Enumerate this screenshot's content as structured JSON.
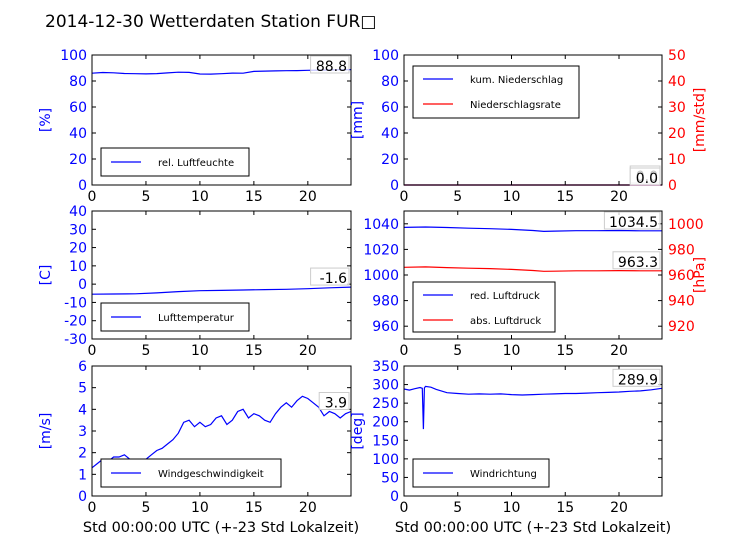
{
  "figure": {
    "title": "2014-12-30 Wetterdaten Station FUR□",
    "xlabel": "Std 00:00:00 UTC (+-23 Std Lokalzeit)"
  },
  "colors": {
    "blue": "#0000ff",
    "red": "#ff0000",
    "black": "#000000"
  },
  "chart_data": [
    {
      "type": "line",
      "ylabel": "[%]",
      "ylim": [
        0,
        100
      ],
      "yticks": [
        0,
        20,
        40,
        60,
        80,
        100
      ],
      "xlim": [
        0,
        24
      ],
      "xticks": [
        0,
        5,
        10,
        15,
        20
      ],
      "last_value_label": "88.8",
      "series": [
        {
          "name": "rel. Luftfeuchte",
          "color": "#0000ff",
          "x": [
            0,
            1,
            2,
            3,
            4,
            5,
            6,
            7,
            8,
            9,
            10,
            11,
            12,
            13,
            14,
            15,
            16,
            17,
            18,
            19,
            20,
            21,
            22,
            23,
            24
          ],
          "y": [
            86,
            86.5,
            86.3,
            85.8,
            85.6,
            85.5,
            85.7,
            86.2,
            86.8,
            86.6,
            85.4,
            85.3,
            85.6,
            86.1,
            86,
            87.4,
            87.6,
            87.8,
            87.9,
            88,
            88.2,
            88.4,
            88.5,
            88.7,
            88.8
          ]
        }
      ]
    },
    {
      "type": "line",
      "ylabel": "[mm]",
      "ylabel2": "[mm/std]",
      "ylim": [
        0,
        100
      ],
      "yticks": [
        0,
        20,
        40,
        60,
        80,
        100
      ],
      "ylim2": [
        0,
        50
      ],
      "yticks2": [
        0,
        10,
        20,
        30,
        40,
        50
      ],
      "xlim": [
        0,
        24
      ],
      "xticks": [
        0,
        5,
        10,
        15,
        20
      ],
      "last_value_label": "0.0",
      "last_value_label2": "0.0",
      "series": [
        {
          "name": "kum. Niederschlag",
          "color": "#0000ff",
          "axis": "left",
          "x": [
            0,
            24
          ],
          "y": [
            0,
            0
          ]
        },
        {
          "name": "Niederschlagsrate",
          "color": "#ff0000",
          "axis": "right",
          "x": [
            0,
            24
          ],
          "y": [
            0,
            0
          ]
        }
      ]
    },
    {
      "type": "line",
      "ylabel": "[C]",
      "ylim": [
        -30,
        40
      ],
      "yticks": [
        -30,
        -20,
        -10,
        0,
        10,
        20,
        30,
        40
      ],
      "xlim": [
        0,
        24
      ],
      "xticks": [
        0,
        5,
        10,
        15,
        20
      ],
      "last_value_label": "-1.6",
      "series": [
        {
          "name": "Lufttemperatur",
          "color": "#0000ff",
          "x": [
            0,
            2,
            4,
            6,
            8,
            10,
            12,
            14,
            16,
            18,
            20,
            22,
            24
          ],
          "y": [
            -5.5,
            -5.4,
            -5.3,
            -4.8,
            -4.1,
            -3.6,
            -3.4,
            -3.2,
            -3,
            -2.8,
            -2.5,
            -2,
            -1.6
          ]
        }
      ]
    },
    {
      "type": "line",
      "ylabel2": "[hPa]",
      "ylim": [
        950,
        1050
      ],
      "yticks": [
        960,
        980,
        1000,
        1020,
        1040
      ],
      "ylim2": [
        910,
        1010
      ],
      "yticks2": [
        920,
        940,
        960,
        980,
        1000
      ],
      "xlim": [
        0,
        24
      ],
      "xticks": [
        0,
        5,
        10,
        15,
        20
      ],
      "last_value_label": "1034.5",
      "last_value_label2": "963.3",
      "series": [
        {
          "name": "red. Luftdruck",
          "color": "#0000ff",
          "axis": "left",
          "x": [
            0,
            2,
            4,
            6,
            8,
            10,
            12,
            13,
            14,
            16,
            18,
            20,
            22,
            24
          ],
          "y": [
            1037.2,
            1037.5,
            1037.1,
            1036.6,
            1036.2,
            1035.6,
            1034.8,
            1034.1,
            1034.3,
            1034.6,
            1034.6,
            1034.8,
            1034.5,
            1034.5
          ]
        },
        {
          "name": "abs. Luftdruck",
          "color": "#ff0000",
          "axis": "right",
          "x": [
            0,
            2,
            4,
            6,
            8,
            10,
            12,
            13,
            14,
            16,
            18,
            20,
            22,
            24
          ],
          "y": [
            966,
            966.3,
            965.8,
            965.3,
            965,
            964.4,
            963.5,
            962.9,
            963,
            963.3,
            963.3,
            963.4,
            963.3,
            963.3
          ]
        }
      ]
    },
    {
      "type": "line",
      "ylabel": "[m/s]",
      "ylim": [
        0,
        6
      ],
      "yticks": [
        0,
        1,
        2,
        3,
        4,
        5,
        6
      ],
      "xlim": [
        0,
        24
      ],
      "xticks": [
        0,
        5,
        10,
        15,
        20
      ],
      "last_value_label": "3.9",
      "series": [
        {
          "name": "Windgeschwindigkeit",
          "color": "#0000ff",
          "x": [
            0,
            0.5,
            1,
            1.5,
            2,
            2.5,
            3,
            3.5,
            4,
            4.5,
            5,
            5.5,
            6,
            6.5,
            7,
            7.5,
            8,
            8.5,
            9,
            9.5,
            10,
            10.5,
            11,
            11.5,
            12,
            12.5,
            13,
            13.5,
            14,
            14.5,
            15,
            15.5,
            16,
            16.5,
            17,
            17.5,
            18,
            18.5,
            19,
            19.5,
            20,
            20.5,
            21,
            21.5,
            22,
            22.5,
            23,
            23.5,
            24
          ],
          "y": [
            1.3,
            1.5,
            1.7,
            1.6,
            1.8,
            1.8,
            1.9,
            1.7,
            1.6,
            1.6,
            1.7,
            1.9,
            2.1,
            2.2,
            2.4,
            2.6,
            2.9,
            3.4,
            3.5,
            3.2,
            3.4,
            3.2,
            3.3,
            3.6,
            3.7,
            3.3,
            3.5,
            3.9,
            4,
            3.6,
            3.8,
            3.7,
            3.5,
            3.4,
            3.8,
            4.1,
            4.3,
            4.1,
            4.4,
            4.6,
            4.5,
            4.3,
            4.1,
            3.7,
            3.9,
            3.8,
            3.6,
            3.8,
            3.9
          ]
        }
      ]
    },
    {
      "type": "line",
      "ylabel": "[deg]",
      "ylim": [
        0,
        350
      ],
      "yticks": [
        0,
        50,
        100,
        150,
        200,
        250,
        300,
        350
      ],
      "xlim": [
        0,
        24
      ],
      "xticks": [
        0,
        5,
        10,
        15,
        20
      ],
      "last_value_label": "289.9",
      "series": [
        {
          "name": "Windrichtung",
          "color": "#0000ff",
          "x": [
            0,
            0.5,
            1,
            1.5,
            1.7,
            1.8,
            1.9,
            2,
            2.5,
            3,
            4,
            5,
            6,
            7,
            8,
            9,
            10,
            11,
            12,
            13,
            14,
            15,
            16,
            17,
            18,
            19,
            20,
            21,
            22,
            23,
            24
          ],
          "y": [
            288,
            285,
            289,
            292,
            290,
            180,
            291,
            295,
            293,
            287,
            278,
            276,
            274,
            275,
            274,
            275,
            273,
            272,
            273,
            274,
            275,
            276,
            276,
            277,
            278,
            279,
            280,
            282,
            283,
            286,
            289.9
          ]
        }
      ]
    }
  ]
}
